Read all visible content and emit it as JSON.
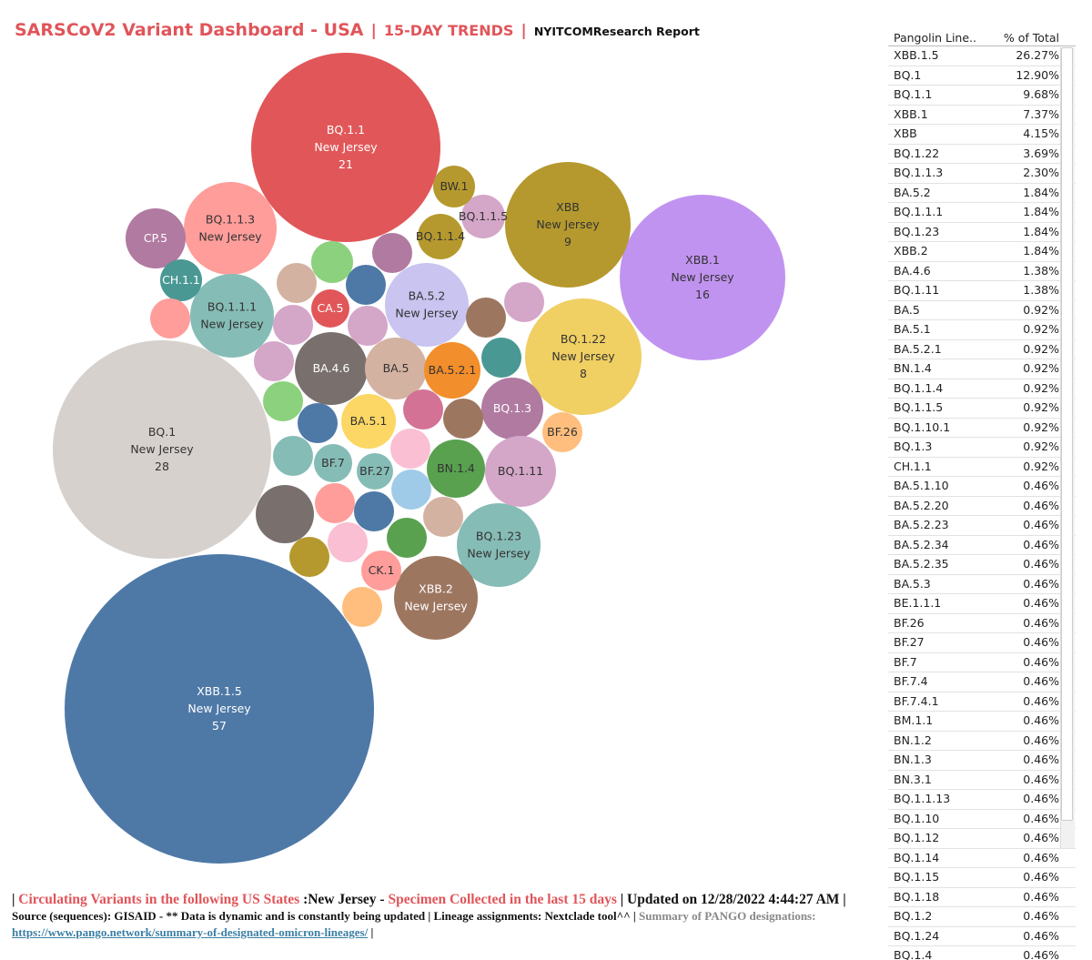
{
  "title": {
    "main": "SARSCoV2 Variant Dashboard - USA",
    "sep1": "|",
    "trends": "15-DAY TRENDS",
    "sep2": "|",
    "report": "NYITCOMResearch Report"
  },
  "chart_data": {
    "type": "bubble",
    "state": "New Jersey",
    "bubbles": [
      {
        "lineage": "XBB.1.5",
        "state": "New Jersey",
        "count": 57,
        "color": "#4e79a7"
      },
      {
        "lineage": "BQ.1",
        "state": "New Jersey",
        "count": 28,
        "color": "#d7d1cd"
      },
      {
        "lineage": "BQ.1.1",
        "state": "New Jersey",
        "count": 21,
        "color": "#e15759"
      },
      {
        "lineage": "XBB.1",
        "state": "New Jersey",
        "count": 16,
        "color": "#c193f0"
      },
      {
        "lineage": "XBB",
        "state": "New Jersey",
        "count": 9,
        "color": "#b5992e"
      },
      {
        "lineage": "BQ.1.22",
        "state": "New Jersey",
        "count": 8,
        "color": "#f0cf63"
      },
      {
        "lineage": "BQ.1.1.3",
        "state": "New Jersey",
        "color": "#ff9d9a"
      },
      {
        "lineage": "BQ.1.1.1",
        "state": "New Jersey",
        "color": "#86bcb6"
      },
      {
        "lineage": "BA.5.2",
        "state": "New Jersey",
        "color": "#c9c4f0"
      },
      {
        "lineage": "BQ.1.23",
        "state": "New Jersey",
        "color": "#86bcb6"
      },
      {
        "lineage": "XBB.2",
        "state": "New Jersey",
        "color": "#9d7660"
      },
      {
        "lineage": "BA.4.6",
        "color": "#79706e"
      },
      {
        "lineage": "BA.5",
        "color": "#d4b2a1"
      },
      {
        "lineage": "BA.5.2.1",
        "color": "#f28e2b"
      },
      {
        "lineage": "BA.5.1",
        "color": "#fcd765"
      },
      {
        "lineage": "BQ.1.3",
        "color": "#b07aa1"
      },
      {
        "lineage": "BQ.1.11",
        "color": "#d4a6c8"
      },
      {
        "lineage": "BN.1.4",
        "color": "#59a14f"
      },
      {
        "lineage": "BQ.1.1.4",
        "color": "#b5992e"
      },
      {
        "lineage": "BQ.1.1.5",
        "color": "#d4a6c8"
      },
      {
        "lineage": "CP.5",
        "color": "#b07aa1"
      },
      {
        "lineage": "CH.1.1",
        "color": "#499894"
      },
      {
        "lineage": "CA.5",
        "color": "#e15759"
      },
      {
        "lineage": "BF.7",
        "color": "#86bcb6"
      },
      {
        "lineage": "BF.27",
        "color": "#86bcb6"
      },
      {
        "lineage": "BF.26",
        "color": "#ffbe7d"
      },
      {
        "lineage": "CK.1",
        "color": "#ff9d9a"
      },
      {
        "lineage": "BW.1",
        "color": "#b5992e"
      },
      {
        "lineage": "",
        "color": "#b07aa1"
      },
      {
        "lineage": "",
        "color": "#8cd17d"
      },
      {
        "lineage": "",
        "color": "#d4b2a1"
      },
      {
        "lineage": "",
        "color": "#4e79a7"
      },
      {
        "lineage": "",
        "color": "#d4a6c8"
      },
      {
        "lineage": "",
        "color": "#d4a6c8"
      },
      {
        "lineage": "",
        "color": "#9d7660"
      },
      {
        "lineage": "",
        "color": "#d4a6c8"
      },
      {
        "lineage": "",
        "color": "#d4a6c8"
      },
      {
        "lineage": "",
        "color": "#8cd17d"
      },
      {
        "lineage": "",
        "color": "#4e79a7"
      },
      {
        "lineage": "",
        "color": "#d37295"
      },
      {
        "lineage": "",
        "color": "#499894"
      },
      {
        "lineage": "",
        "color": "#9d7660"
      },
      {
        "lineage": "",
        "color": "#fabfd2"
      },
      {
        "lineage": "",
        "color": "#86bcb6"
      },
      {
        "lineage": "",
        "color": "#79706e"
      },
      {
        "lineage": "",
        "color": "#ff9d9a"
      },
      {
        "lineage": "",
        "color": "#4e79a7"
      },
      {
        "lineage": "",
        "color": "#a0cbe8"
      },
      {
        "lineage": "",
        "color": "#d4b2a1"
      },
      {
        "lineage": "",
        "color": "#59a14f"
      },
      {
        "lineage": "",
        "color": "#b5992e"
      },
      {
        "lineage": "",
        "color": "#fabfd2"
      },
      {
        "lineage": "",
        "color": "#ffbe7d"
      },
      {
        "lineage": "",
        "color": "#ff9d9a"
      },
      {
        "lineage": "",
        "color": "#499894"
      }
    ]
  },
  "table": {
    "headers": [
      "Pangolin Line..",
      "% of Total"
    ],
    "rows": [
      [
        "XBB.1.5",
        "26.27%"
      ],
      [
        "BQ.1",
        "12.90%"
      ],
      [
        "BQ.1.1",
        "9.68%"
      ],
      [
        "XBB.1",
        "7.37%"
      ],
      [
        "XBB",
        "4.15%"
      ],
      [
        "BQ.1.22",
        "3.69%"
      ],
      [
        "BQ.1.1.3",
        "2.30%"
      ],
      [
        "BA.5.2",
        "1.84%"
      ],
      [
        "BQ.1.1.1",
        "1.84%"
      ],
      [
        "BQ.1.23",
        "1.84%"
      ],
      [
        "XBB.2",
        "1.84%"
      ],
      [
        "BA.4.6",
        "1.38%"
      ],
      [
        "BQ.1.11",
        "1.38%"
      ],
      [
        "BA.5",
        "0.92%"
      ],
      [
        "BA.5.1",
        "0.92%"
      ],
      [
        "BA.5.2.1",
        "0.92%"
      ],
      [
        "BN.1.4",
        "0.92%"
      ],
      [
        "BQ.1.1.4",
        "0.92%"
      ],
      [
        "BQ.1.1.5",
        "0.92%"
      ],
      [
        "BQ.1.10.1",
        "0.92%"
      ],
      [
        "BQ.1.3",
        "0.92%"
      ],
      [
        "CH.1.1",
        "0.92%"
      ],
      [
        "BA.5.1.10",
        "0.46%"
      ],
      [
        "BA.5.2.20",
        "0.46%"
      ],
      [
        "BA.5.2.23",
        "0.46%"
      ],
      [
        "BA.5.2.34",
        "0.46%"
      ],
      [
        "BA.5.2.35",
        "0.46%"
      ],
      [
        "BA.5.3",
        "0.46%"
      ],
      [
        "BE.1.1.1",
        "0.46%"
      ],
      [
        "BF.26",
        "0.46%"
      ],
      [
        "BF.27",
        "0.46%"
      ],
      [
        "BF.7",
        "0.46%"
      ],
      [
        "BF.7.4",
        "0.46%"
      ],
      [
        "BF.7.4.1",
        "0.46%"
      ],
      [
        "BM.1.1",
        "0.46%"
      ],
      [
        "BN.1.2",
        "0.46%"
      ],
      [
        "BN.1.3",
        "0.46%"
      ],
      [
        "BN.3.1",
        "0.46%"
      ],
      [
        "BQ.1.1.13",
        "0.46%"
      ],
      [
        "BQ.1.10",
        "0.46%"
      ],
      [
        "BQ.1.12",
        "0.46%"
      ],
      [
        "BQ.1.14",
        "0.46%"
      ],
      [
        "BQ.1.15",
        "0.46%"
      ],
      [
        "BQ.1.18",
        "0.46%"
      ],
      [
        "BQ.1.2",
        "0.46%"
      ],
      [
        "BQ.1.24",
        "0.46%"
      ],
      [
        "BQ.1.4",
        "0.46%"
      ]
    ]
  },
  "footer": {
    "bar_start": "|",
    "circulating": "Circulating Variants in the following US States",
    "states_value": ":New Jersey -",
    "specimen": "Specimen Collected in the last 15 days",
    "updated": "| Updated on 12/28/2022 4:44:27 AM |",
    "source": "Source (sequences): GISAID - ** Data is dynamic and is constantly being updated | Lineage assignments: Nextclade tool^^ |",
    "summary": "Summary of PANGO designations:",
    "link": "https://www.pango.network/summary-of-designated-omicron-lineages/",
    "bar_end": "|"
  }
}
